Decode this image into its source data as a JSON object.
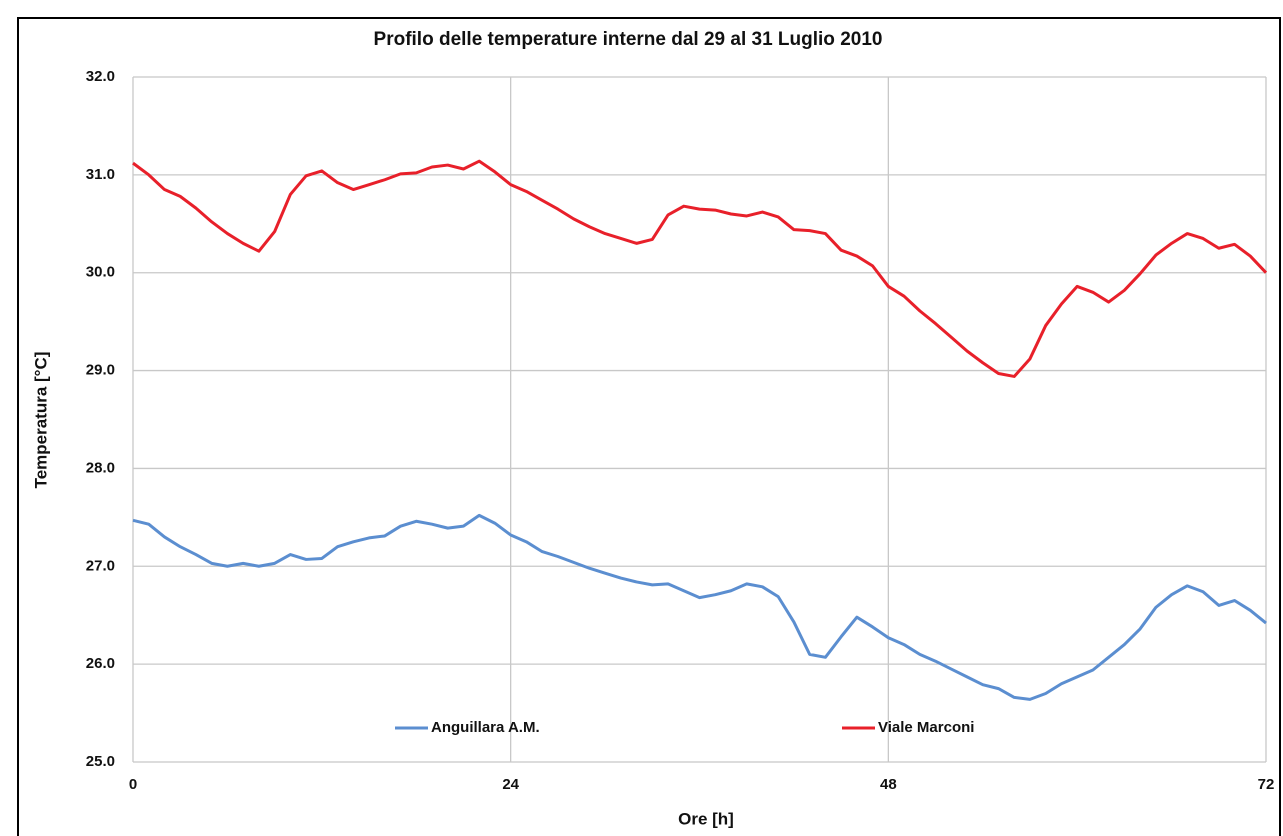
{
  "chart_data": {
    "type": "line",
    "title": "Profilo delle temperature interne dal 29 al 31 Luglio 2010",
    "xlabel": "Ore [h]",
    "ylabel": "Temperatura [°C]",
    "x": [
      0,
      1,
      2,
      3,
      4,
      5,
      6,
      7,
      8,
      9,
      10,
      11,
      12,
      13,
      14,
      15,
      16,
      17,
      18,
      19,
      20,
      21,
      22,
      23,
      24,
      25,
      26,
      27,
      28,
      29,
      30,
      31,
      32,
      33,
      34,
      35,
      36,
      37,
      38,
      39,
      40,
      41,
      42,
      43,
      44,
      45,
      46,
      47,
      48,
      49,
      50,
      51,
      52,
      53,
      54,
      55,
      56,
      57,
      58,
      59,
      60,
      61,
      62,
      63,
      64,
      65,
      66,
      67,
      68,
      69,
      70,
      71,
      72
    ],
    "series": [
      {
        "name": "Anguillara A.M.",
        "color": "#5b8ed0",
        "values": [
          27.47,
          27.43,
          27.3,
          27.2,
          27.12,
          27.03,
          27.0,
          27.03,
          27.0,
          27.03,
          27.12,
          27.07,
          27.08,
          27.2,
          27.25,
          27.29,
          27.31,
          27.41,
          27.46,
          27.43,
          27.39,
          27.41,
          27.52,
          27.44,
          27.32,
          27.25,
          27.15,
          27.1,
          27.04,
          26.98,
          26.93,
          26.88,
          26.84,
          26.81,
          26.82,
          26.75,
          26.68,
          26.71,
          26.75,
          26.82,
          26.79,
          26.69,
          26.43,
          26.1,
          26.07,
          26.28,
          26.48,
          26.38,
          26.27,
          26.2,
          26.1,
          26.03,
          25.95,
          25.87,
          25.79,
          25.75,
          25.66,
          25.64,
          25.7,
          25.8,
          25.87,
          25.94,
          26.07,
          26.2,
          26.36,
          26.58,
          26.71,
          26.8,
          26.74,
          26.6,
          26.65,
          26.55,
          26.42
        ]
      },
      {
        "name": "Viale Marconi",
        "color": "#e8202a",
        "values": [
          31.12,
          31.0,
          30.85,
          30.78,
          30.66,
          30.52,
          30.4,
          30.3,
          30.22,
          30.42,
          30.8,
          30.99,
          31.04,
          30.92,
          30.85,
          30.9,
          30.95,
          31.01,
          31.02,
          31.08,
          31.1,
          31.06,
          31.14,
          31.03,
          30.9,
          30.83,
          30.74,
          30.65,
          30.55,
          30.47,
          30.4,
          30.35,
          30.3,
          30.34,
          30.59,
          30.68,
          30.65,
          30.64,
          30.6,
          30.58,
          30.62,
          30.57,
          30.44,
          30.43,
          30.4,
          30.23,
          30.17,
          30.07,
          29.86,
          29.76,
          29.61,
          29.48,
          29.34,
          29.2,
          29.08,
          28.97,
          28.94,
          29.12,
          29.46,
          29.68,
          29.86,
          29.8,
          29.7,
          29.82,
          29.99,
          30.18,
          30.3,
          30.4,
          30.35,
          30.25,
          30.29,
          30.17,
          30.0
        ]
      }
    ],
    "xlim": [
      0,
      72
    ],
    "xticks": [
      0,
      24,
      48,
      72
    ],
    "ylim": [
      25,
      32
    ],
    "yticks": [
      {
        "value": 25,
        "label": "25.0"
      },
      {
        "value": 26,
        "label": "26.0"
      },
      {
        "value": 27,
        "label": "27.0"
      },
      {
        "value": 28,
        "label": "28.0"
      },
      {
        "value": 29,
        "label": "29.0"
      },
      {
        "value": 30,
        "label": "30.0"
      },
      {
        "value": 31,
        "label": "31.0"
      },
      {
        "value": 32,
        "label": "32.0"
      }
    ],
    "grid": true,
    "legend": "bottom"
  }
}
